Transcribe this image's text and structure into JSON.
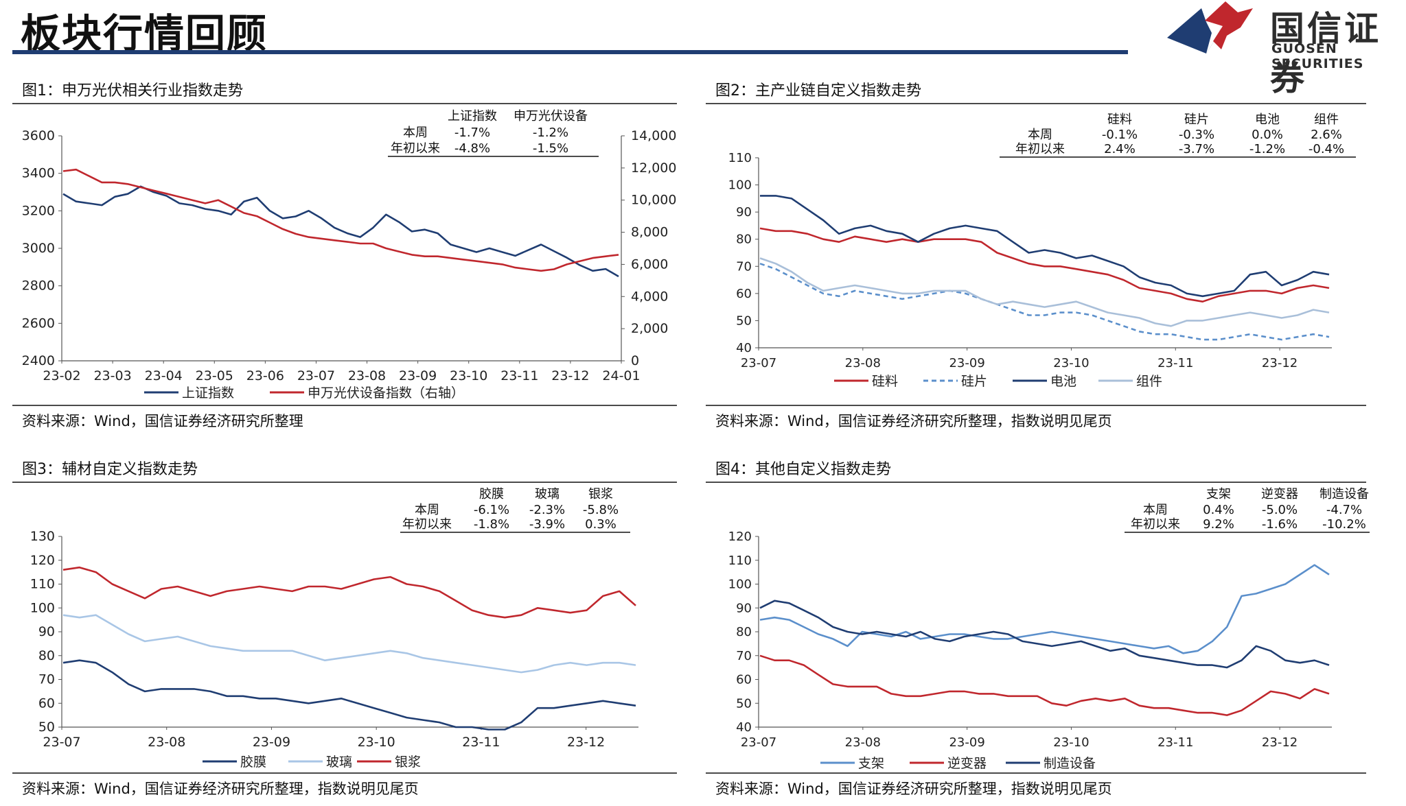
{
  "header": {
    "title": "板块行情回顾",
    "logo_cn": "国信证券",
    "logo_en": "GUOSEN SECURITIES",
    "brand_colors": {
      "navy": "#1f3d72",
      "red": "#c0272d"
    }
  },
  "panels": [
    {
      "title": "图1：申万光伏相关行业指数走势",
      "source": "资料来源：Wind，国信证券经济研究所整理",
      "table": {
        "headers": [
          "上证指数",
          "申万光伏设备"
        ],
        "rows": [
          {
            "label": "本周",
            "values": [
              "-1.7%",
              "-1.2%"
            ]
          },
          {
            "label": "年初以来",
            "values": [
              "-4.8%",
              "-1.5%"
            ]
          }
        ]
      }
    },
    {
      "title": "图2：主产业链自定义指数走势",
      "source": "资料来源：Wind，国信证券经济研究所整理，指数说明见尾页",
      "table": {
        "headers": [
          "硅料",
          "硅片",
          "电池",
          "组件"
        ],
        "rows": [
          {
            "label": "本周",
            "values": [
              "-0.1%",
              "-0.3%",
              "0.0%",
              "2.6%"
            ]
          },
          {
            "label": "年初以来",
            "values": [
              "2.4%",
              "-3.7%",
              "-1.2%",
              "-0.4%"
            ]
          }
        ]
      }
    },
    {
      "title": "图3：辅材自定义指数走势",
      "source": "资料来源：Wind，国信证券经济研究所整理，指数说明见尾页",
      "table": {
        "headers": [
          "胶膜",
          "玻璃",
          "银浆"
        ],
        "rows": [
          {
            "label": "本周",
            "values": [
              "-6.1%",
              "-2.3%",
              "-5.8%"
            ]
          },
          {
            "label": "年初以来",
            "values": [
              "-1.8%",
              "-3.9%",
              "0.3%"
            ]
          }
        ]
      }
    },
    {
      "title": "图4：其他自定义指数走势",
      "source": "资料来源：Wind，国信证券经济研究所整理，指数说明见尾页",
      "table": {
        "headers": [
          "支架",
          "逆变器",
          "制造设备"
        ],
        "rows": [
          {
            "label": "本周",
            "values": [
              "0.4%",
              "-5.0%",
              "-4.7%"
            ]
          },
          {
            "label": "年初以来",
            "values": [
              "9.2%",
              "-1.6%",
              "-10.2%"
            ]
          }
        ]
      }
    }
  ],
  "chart_data": [
    {
      "type": "line",
      "title": "图1：申万光伏相关行业指数走势",
      "x_labels": [
        "23-02",
        "23-03",
        "23-04",
        "23-05",
        "23-06",
        "23-07",
        "23-08",
        "23-09",
        "23-10",
        "23-11",
        "23-12",
        "24-01"
      ],
      "y_ticks": [
        "3600",
        "3400",
        "3200",
        "3000",
        "2800",
        "2600",
        "2400"
      ],
      "y2_ticks": [
        "14,000",
        "12,000",
        "10,000",
        "8,000",
        "6,000",
        "4,000",
        "2,000",
        "0"
      ],
      "ylim": [
        2400,
        3600
      ],
      "y2lim": [
        0,
        14000
      ],
      "series": [
        {
          "name": "上证指数",
          "axis": "left",
          "color": "#1f3d72",
          "values": [
            3290,
            3250,
            3240,
            3230,
            3275,
            3290,
            3330,
            3300,
            3280,
            3240,
            3230,
            3210,
            3200,
            3180,
            3250,
            3270,
            3200,
            3160,
            3170,
            3200,
            3160,
            3110,
            3080,
            3060,
            3110,
            3180,
            3140,
            3090,
            3100,
            3080,
            3020,
            3000,
            2980,
            3000,
            2980,
            2960,
            2990,
            3020,
            2985,
            2950,
            2910,
            2880,
            2890,
            2850
          ]
        },
        {
          "name": "申万光伏设备指数（右轴）",
          "axis": "right",
          "color": "#c0272d",
          "values": [
            11800,
            11900,
            11500,
            11100,
            11100,
            11000,
            10800,
            10600,
            10400,
            10200,
            10000,
            9800,
            10000,
            9600,
            9200,
            9000,
            8600,
            8200,
            7900,
            7700,
            7600,
            7500,
            7400,
            7300,
            7300,
            7000,
            6800,
            6600,
            6500,
            6500,
            6400,
            6300,
            6200,
            6100,
            6000,
            5800,
            5700,
            5600,
            5700,
            6000,
            6200,
            6400,
            6500,
            6600
          ]
        }
      ]
    },
    {
      "type": "line",
      "title": "图2：主产业链自定义指数走势",
      "x_labels": [
        "23-07",
        "23-08",
        "23-09",
        "23-10",
        "23-11",
        "23-12"
      ],
      "y_ticks": [
        "110",
        "100",
        "90",
        "80",
        "70",
        "60",
        "50",
        "40"
      ],
      "ylim": [
        40,
        110
      ],
      "series": [
        {
          "name": "硅料",
          "color": "#c0272d",
          "dash": false,
          "values": [
            84,
            83,
            83,
            82,
            80,
            79,
            81,
            80,
            79,
            80,
            79,
            80,
            80,
            80,
            79,
            75,
            73,
            71,
            70,
            70,
            69,
            68,
            67,
            65,
            62,
            61,
            60,
            58,
            57,
            59,
            60,
            61,
            61,
            60,
            62,
            63,
            62
          ]
        },
        {
          "name": "硅片",
          "color": "#5b8fcb",
          "dash": true,
          "values": [
            71,
            69,
            66,
            63,
            60,
            59,
            61,
            60,
            59,
            58,
            59,
            60,
            61,
            60,
            58,
            56,
            54,
            52,
            52,
            53,
            53,
            52,
            50,
            48,
            46,
            45,
            45,
            44,
            43,
            43,
            44,
            45,
            44,
            43,
            44,
            45,
            44
          ]
        },
        {
          "name": "电池",
          "color": "#1f3d72",
          "dash": false,
          "values": [
            96,
            96,
            95,
            91,
            87,
            82,
            84,
            85,
            83,
            82,
            79,
            82,
            84,
            85,
            84,
            83,
            79,
            75,
            76,
            75,
            73,
            74,
            72,
            70,
            66,
            64,
            63,
            60,
            59,
            60,
            61,
            67,
            68,
            63,
            65,
            68,
            67
          ]
        },
        {
          "name": "组件",
          "color": "#a9bfd9",
          "dash": false,
          "values": [
            73,
            71,
            68,
            64,
            61,
            62,
            63,
            62,
            61,
            60,
            60,
            61,
            61,
            61,
            58,
            56,
            57,
            56,
            55,
            56,
            57,
            55,
            53,
            52,
            51,
            49,
            48,
            50,
            50,
            51,
            52,
            53,
            52,
            51,
            52,
            54,
            53
          ]
        }
      ]
    },
    {
      "type": "line",
      "title": "图3：辅材自定义指数走势",
      "x_labels": [
        "23-07",
        "23-08",
        "23-09",
        "23-10",
        "23-11",
        "23-12"
      ],
      "y_ticks": [
        "130",
        "120",
        "110",
        "100",
        "90",
        "80",
        "70",
        "60",
        "50"
      ],
      "ylim": [
        50,
        130
      ],
      "series": [
        {
          "name": "胶膜",
          "color": "#1f3d72",
          "values": [
            77,
            78,
            77,
            73,
            68,
            65,
            66,
            66,
            66,
            65,
            63,
            63,
            62,
            62,
            61,
            60,
            61,
            62,
            60,
            58,
            56,
            54,
            53,
            52,
            50,
            50,
            49,
            49,
            52,
            58,
            58,
            59,
            60,
            61,
            60,
            59
          ]
        },
        {
          "name": "玻璃",
          "color": "#a9c6e6",
          "values": [
            97,
            96,
            97,
            93,
            89,
            86,
            87,
            88,
            86,
            84,
            83,
            82,
            82,
            82,
            82,
            80,
            78,
            79,
            80,
            81,
            82,
            81,
            79,
            78,
            77,
            76,
            75,
            74,
            73,
            74,
            76,
            77,
            76,
            77,
            77,
            76
          ]
        },
        {
          "name": "银浆",
          "color": "#c0272d",
          "values": [
            116,
            117,
            115,
            110,
            107,
            104,
            108,
            109,
            107,
            105,
            107,
            108,
            109,
            108,
            107,
            109,
            109,
            108,
            110,
            112,
            113,
            110,
            109,
            107,
            103,
            99,
            97,
            96,
            97,
            100,
            99,
            98,
            99,
            105,
            107,
            101
          ]
        }
      ]
    },
    {
      "type": "line",
      "title": "图4：其他自定义指数走势",
      "x_labels": [
        "23-07",
        "23-08",
        "23-09",
        "23-10",
        "23-11",
        "23-12"
      ],
      "y_ticks": [
        "120",
        "110",
        "100",
        "90",
        "80",
        "70",
        "60",
        "50",
        "40"
      ],
      "ylim": [
        40,
        120
      ],
      "series": [
        {
          "name": "支架",
          "color": "#5b8fcb",
          "values": [
            85,
            86,
            85,
            82,
            79,
            77,
            74,
            80,
            79,
            78,
            80,
            77,
            78,
            79,
            79,
            78,
            77,
            77,
            78,
            79,
            80,
            79,
            78,
            77,
            76,
            75,
            74,
            73,
            74,
            71,
            72,
            76,
            82,
            95,
            96,
            98,
            100,
            104,
            108,
            104
          ]
        },
        {
          "name": "逆变器",
          "color": "#c0272d",
          "values": [
            70,
            68,
            68,
            66,
            62,
            58,
            57,
            57,
            57,
            54,
            53,
            53,
            54,
            55,
            55,
            54,
            54,
            53,
            53,
            53,
            50,
            49,
            51,
            52,
            51,
            52,
            49,
            48,
            48,
            47,
            46,
            46,
            45,
            47,
            51,
            55,
            54,
            52,
            56,
            54
          ]
        },
        {
          "name": "制造设备",
          "color": "#1f3d72",
          "values": [
            90,
            93,
            92,
            89,
            86,
            82,
            80,
            79,
            80,
            79,
            78,
            80,
            77,
            76,
            78,
            79,
            80,
            79,
            76,
            75,
            74,
            75,
            76,
            74,
            72,
            73,
            70,
            69,
            68,
            67,
            66,
            66,
            65,
            68,
            74,
            72,
            68,
            67,
            68,
            66
          ]
        }
      ]
    }
  ]
}
